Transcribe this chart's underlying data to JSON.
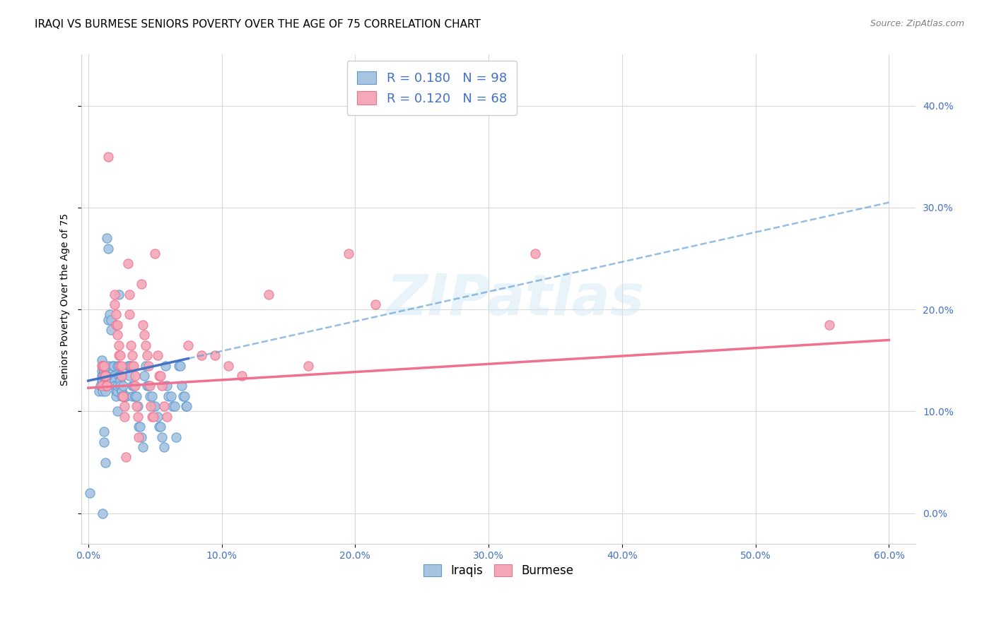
{
  "title": "IRAQI VS BURMESE SENIORS POVERTY OVER THE AGE OF 75 CORRELATION CHART",
  "source": "Source: ZipAtlas.com",
  "ylabel": "Seniors Poverty Over the Age of 75",
  "xlim": [
    -0.005,
    0.62
  ],
  "ylim": [
    -0.03,
    0.45
  ],
  "yticks": [
    0.0,
    0.1,
    0.2,
    0.3,
    0.4
  ],
  "xticks": [
    0.0,
    0.1,
    0.2,
    0.3,
    0.4,
    0.5,
    0.6
  ],
  "iraqi_R": 0.18,
  "iraqi_N": 98,
  "burmese_R": 0.12,
  "burmese_N": 68,
  "iraqi_color": "#a8c4e0",
  "burmese_color": "#f4a8b8",
  "iraqi_line_color": "#5b9bd5",
  "burmese_line_color": "#f07090",
  "iraqi_line_solid_color": "#4472c4",
  "legend_text_color": "#4472c4",
  "watermark": "ZIPatlas",
  "background_color": "#ffffff",
  "grid_color": "#d0d0d0",
  "title_fontsize": 11,
  "axis_label_fontsize": 10,
  "tick_fontsize": 10,
  "iraqi_x": [
    0.001,
    0.008,
    0.009,
    0.01,
    0.01,
    0.01,
    0.01,
    0.011,
    0.011,
    0.011,
    0.011,
    0.012,
    0.012,
    0.012,
    0.012,
    0.012,
    0.013,
    0.013,
    0.013,
    0.013,
    0.014,
    0.015,
    0.015,
    0.015,
    0.016,
    0.017,
    0.017,
    0.018,
    0.018,
    0.019,
    0.02,
    0.02,
    0.02,
    0.02,
    0.021,
    0.021,
    0.021,
    0.022,
    0.022,
    0.022,
    0.022,
    0.023,
    0.023,
    0.023,
    0.024,
    0.024,
    0.024,
    0.025,
    0.025,
    0.025,
    0.026,
    0.026,
    0.027,
    0.027,
    0.028,
    0.028,
    0.03,
    0.031,
    0.031,
    0.032,
    0.033,
    0.033,
    0.034,
    0.035,
    0.035,
    0.036,
    0.037,
    0.038,
    0.039,
    0.04,
    0.041,
    0.042,
    0.043,
    0.044,
    0.045,
    0.046,
    0.048,
    0.049,
    0.05,
    0.052,
    0.053,
    0.054,
    0.055,
    0.057,
    0.058,
    0.059,
    0.06,
    0.062,
    0.063,
    0.065,
    0.066,
    0.068,
    0.069,
    0.07,
    0.071,
    0.072,
    0.073,
    0.074
  ],
  "iraqi_y": [
    0.02,
    0.12,
    0.125,
    0.13,
    0.135,
    0.14,
    0.15,
    0.12,
    0.13,
    0.135,
    0.0,
    0.08,
    0.07,
    0.14,
    0.14,
    0.14,
    0.12,
    0.13,
    0.125,
    0.05,
    0.27,
    0.26,
    0.19,
    0.145,
    0.195,
    0.19,
    0.18,
    0.145,
    0.135,
    0.145,
    0.135,
    0.13,
    0.125,
    0.125,
    0.12,
    0.12,
    0.115,
    0.12,
    0.125,
    0.145,
    0.1,
    0.215,
    0.145,
    0.135,
    0.135,
    0.13,
    0.125,
    0.12,
    0.12,
    0.115,
    0.115,
    0.125,
    0.115,
    0.115,
    0.115,
    0.115,
    0.145,
    0.145,
    0.135,
    0.145,
    0.125,
    0.115,
    0.125,
    0.115,
    0.115,
    0.115,
    0.105,
    0.085,
    0.085,
    0.075,
    0.065,
    0.135,
    0.145,
    0.125,
    0.125,
    0.115,
    0.115,
    0.105,
    0.105,
    0.095,
    0.085,
    0.085,
    0.075,
    0.065,
    0.145,
    0.125,
    0.115,
    0.115,
    0.105,
    0.105,
    0.075,
    0.145,
    0.145,
    0.125,
    0.115,
    0.115,
    0.105,
    0.105
  ],
  "burmese_x": [
    0.01,
    0.01,
    0.011,
    0.011,
    0.012,
    0.012,
    0.013,
    0.013,
    0.014,
    0.014,
    0.015,
    0.02,
    0.02,
    0.021,
    0.021,
    0.022,
    0.022,
    0.023,
    0.023,
    0.024,
    0.024,
    0.025,
    0.025,
    0.026,
    0.026,
    0.027,
    0.027,
    0.028,
    0.03,
    0.031,
    0.031,
    0.032,
    0.033,
    0.033,
    0.034,
    0.035,
    0.035,
    0.036,
    0.037,
    0.038,
    0.04,
    0.041,
    0.042,
    0.043,
    0.044,
    0.045,
    0.046,
    0.047,
    0.048,
    0.049,
    0.05,
    0.052,
    0.053,
    0.054,
    0.055,
    0.057,
    0.059,
    0.075,
    0.085,
    0.095,
    0.105,
    0.115,
    0.135,
    0.165,
    0.195,
    0.215,
    0.335,
    0.555
  ],
  "burmese_y": [
    0.125,
    0.145,
    0.145,
    0.145,
    0.145,
    0.135,
    0.135,
    0.135,
    0.125,
    0.125,
    0.35,
    0.215,
    0.205,
    0.195,
    0.185,
    0.185,
    0.175,
    0.165,
    0.155,
    0.155,
    0.145,
    0.145,
    0.135,
    0.115,
    0.115,
    0.105,
    0.095,
    0.055,
    0.245,
    0.215,
    0.195,
    0.165,
    0.155,
    0.145,
    0.145,
    0.135,
    0.125,
    0.105,
    0.095,
    0.075,
    0.225,
    0.185,
    0.175,
    0.165,
    0.155,
    0.145,
    0.125,
    0.105,
    0.095,
    0.095,
    0.255,
    0.155,
    0.135,
    0.135,
    0.125,
    0.105,
    0.095,
    0.165,
    0.155,
    0.155,
    0.145,
    0.135,
    0.215,
    0.145,
    0.255,
    0.205,
    0.255,
    0.185
  ]
}
